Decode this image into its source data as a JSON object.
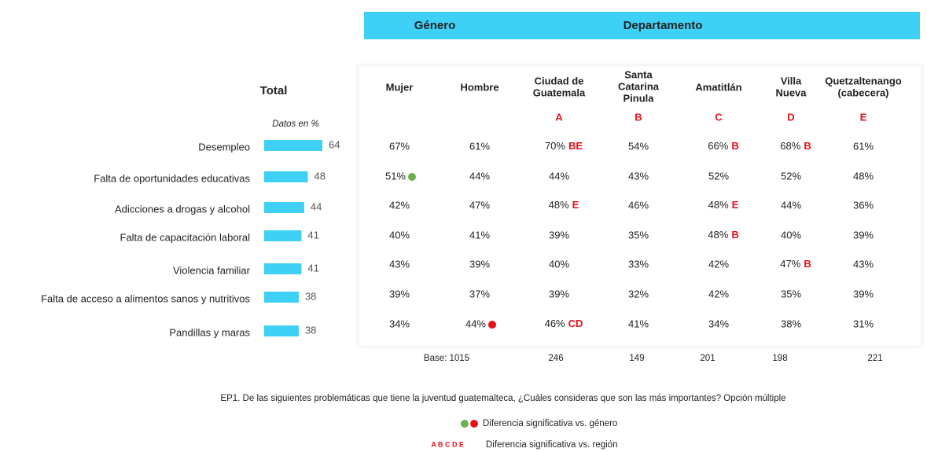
{
  "header": {
    "gender": "Género",
    "department": "Departamento"
  },
  "chart_data": {
    "type": "barh",
    "title": "Total",
    "subtitle": "Datos en %",
    "categories": [
      "Desempleo",
      "Falta de oportunidades educativas",
      "Adicciones a drogas y alcohol",
      "Falta de capacitación laboral",
      "Violencia familiar",
      "Falta de acceso a alimentos sanos y nutritivos",
      "Pandillas y maras"
    ],
    "values": [
      64,
      48,
      44,
      41,
      41,
      38,
      38
    ],
    "color": "#3fd0f5"
  },
  "table": {
    "columns": [
      {
        "name": [
          "Mujer"
        ]
      },
      {
        "name": [
          "Hombre"
        ]
      },
      {
        "name": [
          "Ciudad de",
          "Guatemala"
        ],
        "code": "A"
      },
      {
        "name": [
          "Santa",
          "Catarina",
          "Pinula"
        ],
        "code": "B"
      },
      {
        "name": [
          "Amatitlán"
        ],
        "code": "C"
      },
      {
        "name": [
          "Villa",
          "Nueva"
        ],
        "code": "D"
      },
      {
        "name": [
          "Quetzaltenango",
          "(cabecera)"
        ],
        "code": "E"
      }
    ],
    "rows": [
      [
        {
          "text": "67%"
        },
        {
          "text": "61%"
        },
        {
          "text": "70%",
          "sig": "BE"
        },
        {
          "text": "54%"
        },
        {
          "text": "66%",
          "sig": "B"
        },
        {
          "text": "68%",
          "sig": "B"
        },
        {
          "text": "61%"
        }
      ],
      [
        {
          "text": "51%",
          "dot": "#6ab04c"
        },
        {
          "text": "44%"
        },
        {
          "text": "44%"
        },
        {
          "text": "43%"
        },
        {
          "text": "52%"
        },
        {
          "text": "52%"
        },
        {
          "text": "48%"
        }
      ],
      [
        {
          "text": "42%"
        },
        {
          "text": "47%"
        },
        {
          "text": "48%",
          "sig": "E"
        },
        {
          "text": "46%"
        },
        {
          "text": "48%",
          "sig": "E"
        },
        {
          "text": "44%"
        },
        {
          "text": "36%"
        }
      ],
      [
        {
          "text": "40%"
        },
        {
          "text": "41%"
        },
        {
          "text": "39%"
        },
        {
          "text": "35%"
        },
        {
          "text": "48%",
          "sig": "B"
        },
        {
          "text": "40%"
        },
        {
          "text": "39%"
        }
      ],
      [
        {
          "text": "43%"
        },
        {
          "text": "39%"
        },
        {
          "text": "40%"
        },
        {
          "text": "33%"
        },
        {
          "text": "42%"
        },
        {
          "text": "47%",
          "sig": "B"
        },
        {
          "text": "43%"
        }
      ],
      [
        {
          "text": "39%"
        },
        {
          "text": "37%"
        },
        {
          "text": "39%"
        },
        {
          "text": "32%"
        },
        {
          "text": "42%"
        },
        {
          "text": "35%"
        },
        {
          "text": "39%"
        }
      ],
      [
        {
          "text": "34%"
        },
        {
          "text": "44%",
          "dot": "#e8101a"
        },
        {
          "text": "46%",
          "sig": "CD"
        },
        {
          "text": "41%"
        },
        {
          "text": "34%"
        },
        {
          "text": "38%"
        },
        {
          "text": "31%"
        }
      ]
    ],
    "base_label": "Base: 1015",
    "base": [
      246,
      149,
      201,
      198,
      221
    ]
  },
  "footnote": "EP1. De las siguientes problemáticas que tiene la juventud guatemalteca, ¿Cuáles consideras que son las más importantes? Opción múltiple",
  "legend": {
    "gender": "Diferencia significativa vs. género",
    "region_codes": "A B C D E",
    "region": "Diferencia significativa vs. región"
  }
}
